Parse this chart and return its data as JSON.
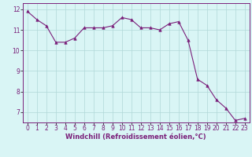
{
  "x": [
    0,
    1,
    2,
    3,
    4,
    5,
    6,
    7,
    8,
    9,
    10,
    11,
    12,
    13,
    14,
    15,
    16,
    17,
    18,
    19,
    20,
    21,
    22,
    23
  ],
  "y": [
    11.9,
    11.5,
    11.2,
    10.4,
    10.4,
    10.6,
    11.1,
    11.1,
    11.1,
    11.2,
    11.6,
    11.5,
    11.1,
    11.1,
    11.0,
    11.3,
    11.4,
    10.5,
    8.6,
    8.3,
    7.6,
    7.2,
    6.6,
    6.7
  ],
  "line_color": "#7a1f7a",
  "marker": "^",
  "marker_size": 2.5,
  "bg_color": "#d9f5f5",
  "grid_color": "#b0d8d8",
  "xlabel": "Windchill (Refroidissement éolien,°C)",
  "xlim": [
    -0.5,
    23.5
  ],
  "ylim": [
    6.5,
    12.3
  ],
  "yticks": [
    7,
    8,
    9,
    10,
    11,
    12
  ],
  "xticks": [
    0,
    1,
    2,
    3,
    4,
    5,
    6,
    7,
    8,
    9,
    10,
    11,
    12,
    13,
    14,
    15,
    16,
    17,
    18,
    19,
    20,
    21,
    22,
    23
  ],
  "tick_color": "#7a1f7a",
  "label_color": "#7a1f7a",
  "spine_color": "#7a1f7a",
  "tick_fontsize": 5.5,
  "xlabel_fontsize": 6.0
}
